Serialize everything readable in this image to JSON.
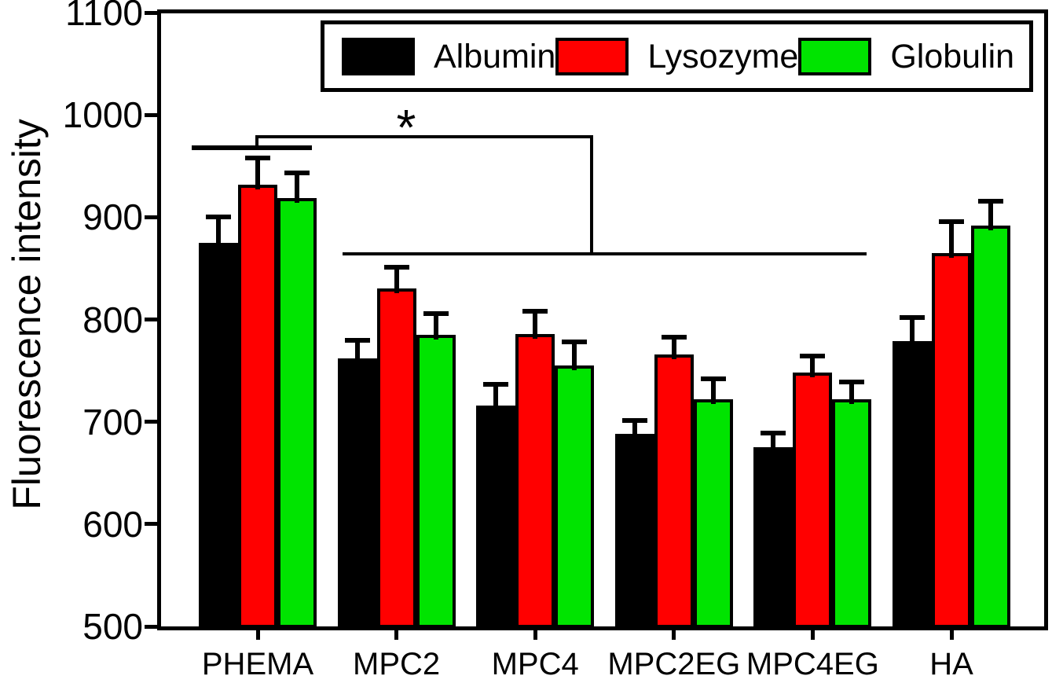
{
  "chart_data": {
    "type": "bar",
    "title": "",
    "xlabel": "",
    "ylabel": "Fluorescence intensity",
    "categories": [
      "PHEMA",
      "MPC2",
      "MPC4",
      "MPC2EG",
      "MPC4EG",
      "HA"
    ],
    "series": [
      {
        "name": "Albumin",
        "color": "#000000",
        "values": [
          875,
          762,
          716,
          688,
          675,
          779
        ],
        "errors": [
          25,
          18,
          21,
          13,
          14,
          23
        ]
      },
      {
        "name": "Lysozyme",
        "color": "#ff0000",
        "values": [
          932,
          830,
          786,
          766,
          748,
          865
        ],
        "errors": [
          26,
          21,
          22,
          17,
          16,
          31
        ]
      },
      {
        "name": "Globulin",
        "color": "#00e400",
        "values": [
          919,
          785,
          755,
          722,
          722,
          892
        ],
        "errors": [
          24,
          21,
          23,
          20,
          17,
          24
        ]
      }
    ],
    "ylim": [
      500,
      1100
    ],
    "yticks": [
      500,
      600,
      700,
      800,
      900,
      1000,
      1100
    ],
    "grid": false,
    "legend_position": "top-right-inside",
    "error_bars": "upper-only",
    "significance": {
      "symbol": "*",
      "compares": "PHEMA vs MPC2-MPC4EG",
      "phema_overline_y_value": 968,
      "bracket_y_value": 979,
      "range_line_y_value": 864,
      "range_line_span": [
        "MPC2",
        "MPC4EG"
      ]
    },
    "colors": {
      "axis": "#000000",
      "background": "#ffffff"
    }
  }
}
